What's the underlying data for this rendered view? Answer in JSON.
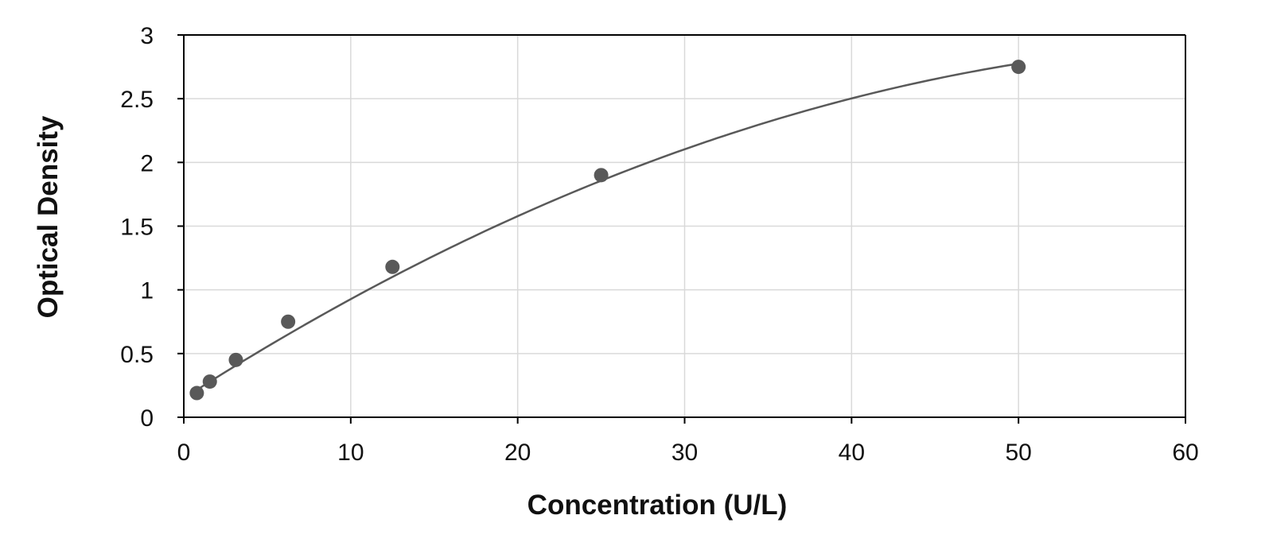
{
  "chart_data": {
    "type": "scatter",
    "title": "",
    "xlabel": "Concentration (U/L)",
    "ylabel": "Optical Density",
    "xlim": [
      0,
      60
    ],
    "ylim": [
      0,
      3
    ],
    "x_ticks": [
      0,
      10,
      20,
      30,
      40,
      50,
      60
    ],
    "y_ticks": [
      0,
      0.5,
      1,
      1.5,
      2,
      2.5,
      3
    ],
    "x_tick_labels": [
      "0",
      "10",
      "20",
      "30",
      "40",
      "50",
      "60"
    ],
    "y_tick_labels": [
      "0",
      "0.5",
      "1",
      "1.5",
      "2",
      "2.5",
      "3"
    ],
    "grid": true,
    "legend": "none",
    "series": [
      {
        "points": [
          {
            "x": 0.78,
            "y": 0.19
          },
          {
            "x": 1.56,
            "y": 0.28
          },
          {
            "x": 3.12,
            "y": 0.45
          },
          {
            "x": 6.25,
            "y": 0.75
          },
          {
            "x": 12.5,
            "y": 1.18
          },
          {
            "x": 25,
            "y": 1.9
          },
          {
            "x": 50,
            "y": 2.75
          }
        ],
        "marker_color": "#595959"
      }
    ],
    "trendline": {
      "type": "polynomial",
      "coefficients": [
        0.15,
        0.084,
        -0.00063
      ],
      "x_range": [
        0.78,
        50
      ],
      "color": "#595959"
    },
    "colors": {
      "axis": "#000000",
      "grid": "#d9d9d9",
      "marker": "#595959"
    }
  }
}
